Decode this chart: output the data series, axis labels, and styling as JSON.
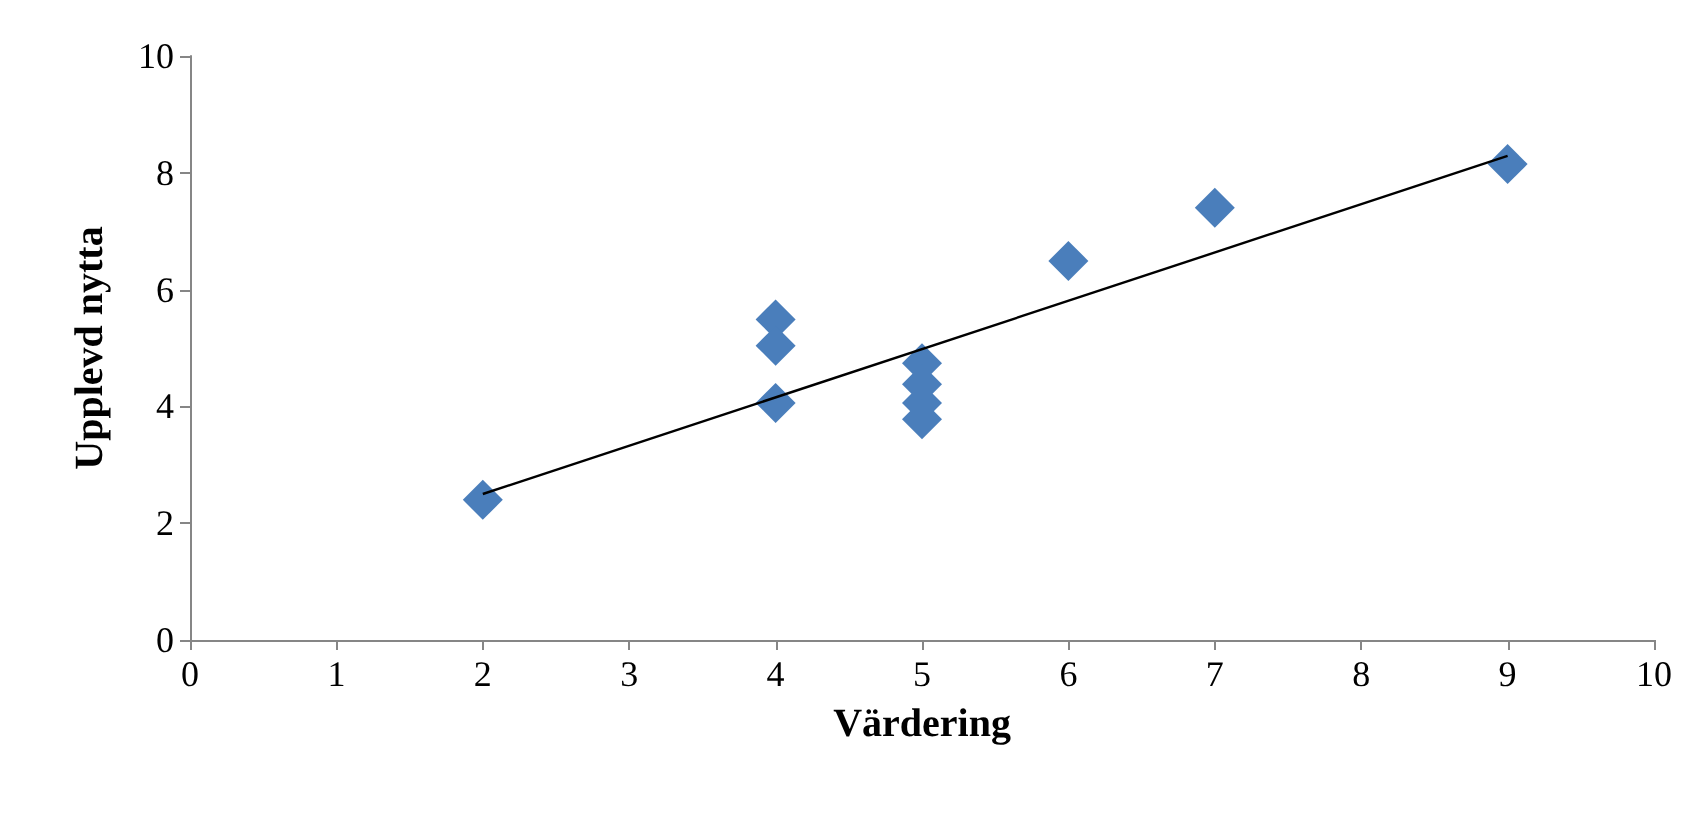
{
  "chart_data": {
    "type": "scatter",
    "xlabel": "Värdering",
    "ylabel": "Upplevd nytta",
    "xlim": [
      0,
      10
    ],
    "xticks": [
      0,
      1,
      2,
      3,
      4,
      5,
      6,
      7,
      8,
      9,
      10
    ],
    "ylim": [
      0,
      10
    ],
    "yticks": [
      0,
      2,
      4,
      6,
      8,
      10
    ],
    "grid": false,
    "marker": "diamond",
    "series": [
      {
        "color": "#4a7ebb",
        "x": [
          2,
          4,
          4,
          4,
          5,
          5,
          5,
          5,
          6,
          7,
          9
        ],
        "values": [
          2.4,
          5.49,
          5.04,
          4.06,
          4.74,
          4.38,
          4.06,
          3.78,
          6.49,
          7.4,
          8.15
        ]
      },
      {
        "type": "line",
        "color": "#000000",
        "marker": "none",
        "x": [
          2,
          9
        ],
        "values": [
          2.5,
          8.29
        ]
      }
    ]
  }
}
